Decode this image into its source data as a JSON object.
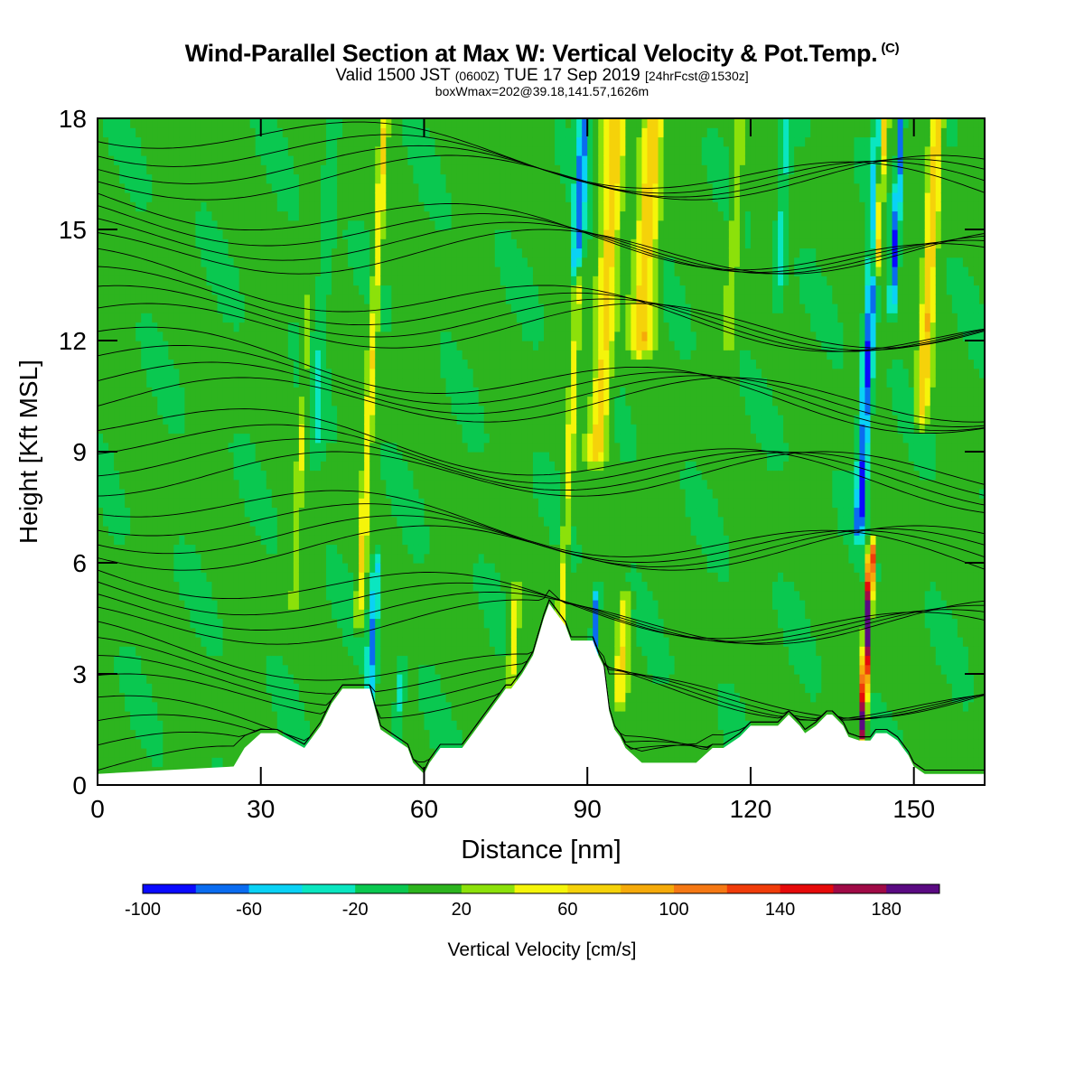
{
  "header": {
    "title": "Wind-Parallel Section at Max W: Vertical Velocity & Pot.Temp.",
    "title_mark": "(C)",
    "valid_main": "Valid 1500 JST",
    "valid_utc": "(0600Z)",
    "valid_date": "TUE 17 Sep 2019",
    "forecast": "[24hrFcst@1530z]",
    "boxwmax": "boxWmax=202@39.18,141.57,1626m"
  },
  "colorbar": {
    "label": "Vertical Velocity [cm/s]",
    "tick_labels": [
      "-100",
      "-60",
      "-20",
      "20",
      "60",
      "100",
      "140",
      "180"
    ],
    "bins": [
      -100,
      -80,
      -60,
      -40,
      -20,
      0,
      20,
      40,
      60,
      80,
      100,
      120,
      140,
      160,
      180,
      200
    ],
    "colors": [
      "#0a0aff",
      "#0a6cf0",
      "#0ad2f5",
      "#0ae6c0",
      "#0ac850",
      "#2db41e",
      "#8ce10a",
      "#f5f50a",
      "#f5d20a",
      "#f5aa0a",
      "#f57814",
      "#f03c0a",
      "#e60a0a",
      "#a00a46",
      "#5a0a82"
    ]
  },
  "chart_data": {
    "type": "heatmap",
    "title": "Wind-Parallel Section at Max W: Vertical Velocity & Pot.Temp.",
    "xlabel": "Distance [nm]",
    "ylabel": "Height [Kft MSL]",
    "xlim": [
      0,
      163
    ],
    "ylim": [
      0,
      18
    ],
    "xticks": [
      0,
      30,
      60,
      90,
      120,
      150
    ],
    "yticks": [
      0,
      3,
      6,
      9,
      12,
      15,
      18
    ],
    "field": "Vertical Velocity",
    "units": "cm/s",
    "background_value": 5,
    "updrafts": [
      {
        "x": 48,
        "ybot": 4.5,
        "ytop": 18,
        "w": 0.8,
        "peak": 55
      },
      {
        "x": 36,
        "ybot": 5,
        "ytop": 13,
        "w": 0.6,
        "peak": 35
      },
      {
        "x": 85,
        "ybot": 4,
        "ytop": 14,
        "w": 0.8,
        "peak": 42
      },
      {
        "x": 92,
        "ybot": 9,
        "ytop": 18,
        "w": 1.8,
        "peak": 65
      },
      {
        "x": 100,
        "ybot": 12,
        "ytop": 18,
        "w": 2.0,
        "peak": 70
      },
      {
        "x": 96,
        "ybot": 2.5,
        "ytop": 5,
        "w": 1.0,
        "peak": 50
      },
      {
        "x": 76,
        "ybot": 2.5,
        "ytop": 5,
        "w": 1.0,
        "peak": 45
      },
      {
        "x": 140.5,
        "ybot": 1.5,
        "ytop": 6.2,
        "w": 0.6,
        "peak": 202
      },
      {
        "x": 143,
        "ybot": 14,
        "ytop": 18,
        "w": 0.8,
        "peak": 120
      },
      {
        "x": 151.5,
        "ybot": 10,
        "ytop": 18,
        "w": 1.2,
        "peak": 70
      },
      {
        "x": 116,
        "ybot": 12,
        "ytop": 18,
        "w": 1.0,
        "peak": 32
      }
    ],
    "downdrafts": [
      {
        "x": 50,
        "ybot": 2.5,
        "ytop": 6,
        "w": 0.8,
        "peak": -65
      },
      {
        "x": 40,
        "ybot": 9,
        "ytop": 18,
        "w": 1.2,
        "peak": -25
      },
      {
        "x": 88,
        "ybot": 14,
        "ytop": 18,
        "w": 1.0,
        "peak": -75
      },
      {
        "x": 91,
        "ybot": 3,
        "ytop": 5,
        "w": 0.6,
        "peak": -80
      },
      {
        "x": 140,
        "ybot": 7,
        "ytop": 18,
        "w": 1.0,
        "peak": -90
      },
      {
        "x": 146,
        "ybot": 13,
        "ytop": 18,
        "w": 0.6,
        "peak": -90
      },
      {
        "x": 55,
        "ybot": 1,
        "ytop": 3,
        "w": 0.8,
        "peak": -30
      },
      {
        "x": 125,
        "ybot": 13,
        "ytop": 18,
        "w": 1.0,
        "peak": -30
      }
    ],
    "terrain": {
      "x": [
        0,
        25,
        27,
        30,
        33,
        38,
        41,
        43,
        45,
        50,
        52,
        57,
        58,
        60,
        61,
        63,
        64,
        65,
        66,
        67,
        68,
        69,
        70,
        71,
        72,
        73,
        74,
        75,
        76,
        78,
        80,
        81,
        82,
        83,
        85,
        86,
        87,
        89,
        90,
        91,
        92,
        93,
        94,
        95,
        96,
        97,
        100,
        110,
        113,
        115,
        118,
        120,
        123,
        125,
        127,
        129,
        130,
        132,
        134,
        135,
        137,
        138,
        140,
        142,
        143,
        145,
        147,
        149,
        150,
        152,
        160,
        163
      ],
      "h": [
        0.3,
        0.5,
        1.0,
        1.4,
        1.4,
        1.0,
        1.6,
        2.2,
        2.6,
        2.6,
        1.5,
        1.0,
        0.6,
        0.3,
        0.6,
        1.0,
        1.0,
        1.0,
        1.0,
        1.0,
        1.2,
        1.4,
        1.6,
        1.8,
        2.0,
        2.2,
        2.4,
        2.6,
        2.6,
        3.0,
        3.5,
        4.0,
        4.5,
        4.9,
        4.5,
        4.3,
        3.9,
        3.9,
        3.9,
        3.9,
        3.5,
        3.2,
        2.0,
        1.5,
        1.3,
        1.0,
        0.6,
        0.6,
        1.0,
        1.0,
        1.3,
        1.6,
        1.6,
        1.6,
        1.9,
        1.6,
        1.4,
        1.6,
        1.9,
        1.9,
        1.6,
        1.3,
        1.2,
        1.2,
        1.4,
        1.4,
        1.2,
        0.8,
        0.5,
        0.3,
        0.3,
        0.3
      ]
    },
    "theta_contours": {
      "units": "C",
      "levels": [
        35,
        37,
        39,
        41,
        43,
        45,
        47,
        49,
        51,
        53,
        55,
        57,
        59,
        61,
        63,
        65,
        67,
        69,
        71,
        73,
        75,
        77,
        79,
        81,
        83,
        85,
        87,
        89,
        91,
        93,
        95,
        97,
        99,
        101,
        103,
        105
      ],
      "base_height": 0.4,
      "spacing": 0.5
    }
  }
}
